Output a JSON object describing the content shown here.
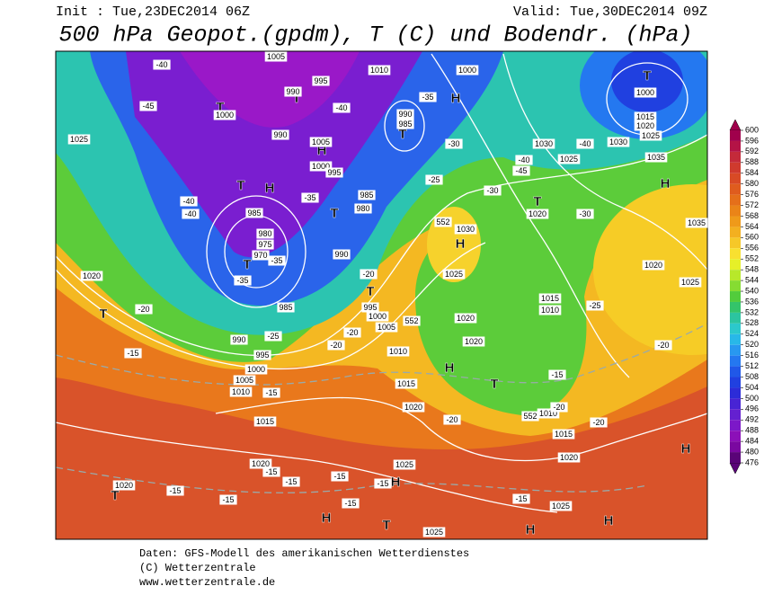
{
  "header": {
    "init": "Init : Tue,23DEC2014 06Z",
    "valid": "Valid: Tue,30DEC2014 09Z",
    "title": "500 hPa Geopot.(gpdm), T (C) und Bodendr. (hPa)"
  },
  "colorbar": {
    "labels": [
      600,
      596,
      592,
      588,
      584,
      580,
      576,
      572,
      568,
      564,
      560,
      556,
      552,
      548,
      544,
      540,
      536,
      532,
      528,
      524,
      520,
      516,
      512,
      508,
      504,
      500,
      496,
      492,
      488,
      484,
      480,
      476
    ],
    "colors": [
      "#a0004c",
      "#b41346",
      "#c42a3a",
      "#cf3a2e",
      "#d84a25",
      "#df5c1e",
      "#e56f1a",
      "#ea8418",
      "#ef9a1a",
      "#f3b020",
      "#f6c828",
      "#f8e030",
      "#e6f028",
      "#b8e82a",
      "#86dc32",
      "#52cc3c",
      "#34c46a",
      "#2cc4a0",
      "#2cc8cc",
      "#28b8e8",
      "#2898f0",
      "#2478f0",
      "#2058e8",
      "#2040e0",
      "#2c2cd8",
      "#4824d4",
      "#6420d0",
      "#7c18c8",
      "#8c10b8",
      "#7a08a0",
      "#5a0478"
    ]
  },
  "map": {
    "labels": [
      "T",
      "T",
      "T",
      "H",
      "T",
      "H",
      "T",
      "H",
      "T",
      "T",
      "H",
      "T",
      "T",
      "H",
      "T",
      "H",
      "T",
      "H",
      "H",
      "H",
      "T",
      "H",
      "H",
      "T",
      "1005",
      "1010",
      "1000",
      "995",
      "990",
      "1000",
      "1025",
      "990",
      "1005",
      "1000",
      "995",
      "990",
      "985",
      "1030",
      "1025",
      "1030",
      "1035",
      "1000",
      "1015",
      "1020",
      "1025",
      "985",
      "980",
      "985",
      "980",
      "975",
      "970",
      "990",
      "1030",
      "1020",
      "1035",
      "1020",
      "1025",
      "1020",
      "1025",
      "1015",
      "1010",
      "985",
      "995",
      "1000",
      "1005",
      "1020",
      "1020",
      "1010",
      "990",
      "995",
      "1000",
      "1005",
      "1010",
      "1015",
      "1020",
      "1015",
      "1010",
      "1015",
      "1020",
      "1020",
      "1025",
      "1020",
      "1025",
      "1025",
      "-40",
      "-45",
      "-40",
      "-35",
      "-30",
      "-40",
      "-40",
      "-45",
      "-40",
      "-40",
      "-35",
      "-25",
      "-30",
      "-30",
      "-35",
      "-35",
      "-20",
      "-25",
      "-20",
      "-25",
      "-20",
      "-20",
      "-20",
      "-15",
      "-15",
      "-15",
      "-20",
      "-20",
      "-20",
      "-15",
      "-15",
      "-15",
      "-15",
      "-15",
      "-15",
      "-15",
      "-15",
      "552",
      "552",
      "552"
    ]
  },
  "footer": {
    "line1": "Daten: GFS-Modell des amerikanischen Wetterdienstes",
    "line2": "(C) Wetterzentrale",
    "line3": "www.wetterzentrale.de"
  }
}
